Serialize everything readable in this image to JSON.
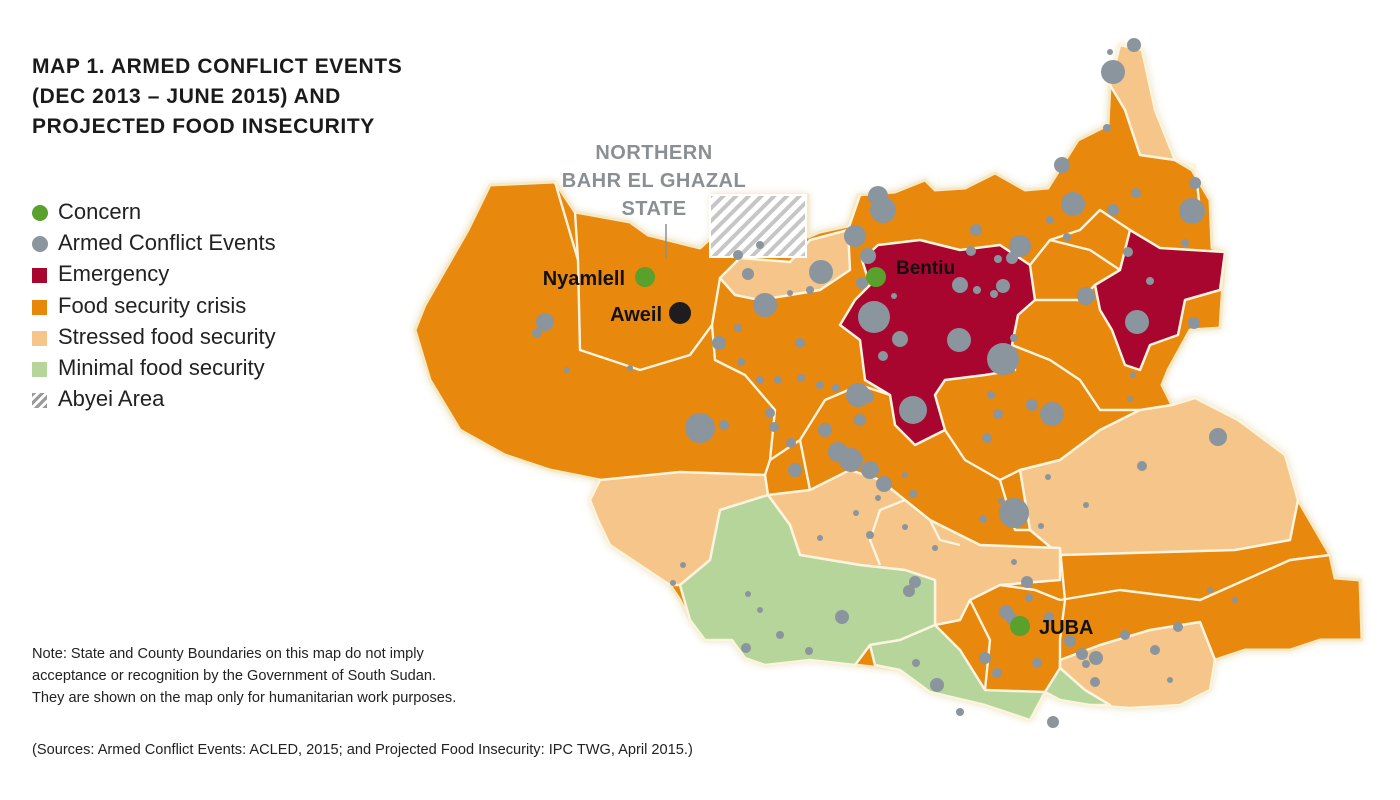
{
  "title_lines": [
    "MAP 1. ARMED CONFLICT EVENTS",
    "(DEC 2013 – JUNE 2015) AND",
    "PROJECTED FOOD INSECURITY"
  ],
  "legend": [
    {
      "label": "Concern",
      "color": "#5aa02c",
      "shape": "circle"
    },
    {
      "label": "Armed Conflict Events",
      "color": "#8a959e",
      "shape": "circle"
    },
    {
      "label": "Emergency",
      "color": "#a8052f",
      "shape": "square"
    },
    {
      "label": "Food security crisis",
      "color": "#e8880a",
      "shape": "square"
    },
    {
      "label": "Stressed food security",
      "color": "#f5c58a",
      "shape": "square"
    },
    {
      "label": "Minimal food security",
      "color": "#b5d59a",
      "shape": "square"
    },
    {
      "label": "Abyei Area",
      "color": "#aaaaaa",
      "shape": "hatched"
    }
  ],
  "map": {
    "region_label_lines": [
      "NORTHERN",
      "BAHR EL GHAZAL",
      "STATE"
    ],
    "places": [
      {
        "name": "Nyamlell",
        "type": "Concern"
      },
      {
        "name": "Aweil",
        "type": "dark"
      },
      {
        "name": "Bentiu",
        "type": "Concern"
      },
      {
        "name": "JUBA",
        "type": "Concern"
      }
    ]
  },
  "note_lines": [
    "Note: State and County Boundaries on this map do not imply",
    "acceptance or recognition by the Government of South Sudan.",
    "They are shown on the map only for humanitarian work purposes."
  ],
  "sources": "(Sources: Armed Conflict Events: ACLED, 2015; and Projected Food Insecurity: IPC TWG, April 2015.)",
  "colors": {
    "concern": "#5aa02c",
    "conflict": "#8a959e",
    "emergency": "#a8052f",
    "crisis": "#e8880a",
    "stressed": "#f5c58a",
    "minimal": "#b5d59a",
    "dark_marker": "#1d1d1f"
  }
}
